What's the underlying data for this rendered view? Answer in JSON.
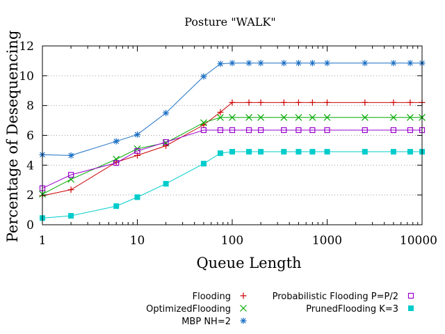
{
  "chart_data": {
    "type": "line",
    "title": "Posture \"WALK\"",
    "xlabel": "Queue Length",
    "ylabel": "Percentage of Desequencing",
    "xscale": "log",
    "xlim": [
      1,
      10000
    ],
    "ylim": [
      0,
      12
    ],
    "grid": "horizontal-dotted",
    "legend_position": "bottom",
    "xticks": [
      {
        "value": 1,
        "label": "1"
      },
      {
        "value": 10,
        "label": "10"
      },
      {
        "value": 100,
        "label": "100"
      },
      {
        "value": 1000,
        "label": "1000"
      },
      {
        "value": 10000,
        "label": "10000"
      }
    ],
    "yticks": [
      {
        "value": 0,
        "label": "0"
      },
      {
        "value": 2,
        "label": "2"
      },
      {
        "value": 4,
        "label": "4"
      },
      {
        "value": 6,
        "label": "6"
      },
      {
        "value": 8,
        "label": "8"
      },
      {
        "value": 10,
        "label": "10"
      },
      {
        "value": 12,
        "label": "12"
      }
    ],
    "x": [
      1,
      2,
      6,
      10,
      20,
      50,
      75,
      100,
      150,
      200,
      350,
      500,
      700,
      1000,
      2500,
      5000,
      7500,
      10000
    ],
    "series": [
      {
        "name": "Flooding",
        "color": "#cc0000",
        "marker": "plus",
        "values": [
          1.95,
          2.35,
          4.2,
          4.65,
          5.3,
          6.7,
          7.55,
          8.2,
          8.2,
          8.2,
          8.2,
          8.2,
          8.2,
          8.2,
          8.2,
          8.2,
          8.2,
          8.2
        ]
      },
      {
        "name": "OptimizedFlooding",
        "color": "#00aa00",
        "marker": "x",
        "values": [
          2.05,
          3.05,
          4.4,
          5.1,
          5.5,
          6.85,
          7.2,
          7.2,
          7.2,
          7.2,
          7.2,
          7.2,
          7.2,
          7.2,
          7.2,
          7.2,
          7.2,
          7.2
        ]
      },
      {
        "name": "MBP NH=2",
        "color": "#1a6fc4",
        "marker": "asterisk",
        "values": [
          4.7,
          4.65,
          5.6,
          6.05,
          7.5,
          9.95,
          10.8,
          10.85,
          10.85,
          10.85,
          10.85,
          10.85,
          10.85,
          10.85,
          10.85,
          10.85,
          10.85,
          10.85
        ]
      },
      {
        "name": "Probabilistic Flooding P=P/2",
        "color": "#9900cc",
        "marker": "open-square",
        "values": [
          2.45,
          3.35,
          4.15,
          4.95,
          5.55,
          6.35,
          6.35,
          6.35,
          6.35,
          6.35,
          6.35,
          6.35,
          6.35,
          6.35,
          6.35,
          6.35,
          6.35,
          6.35
        ]
      },
      {
        "name": "PrunedFlooding K=3",
        "color": "#00cccc",
        "marker": "filled-square",
        "values": [
          0.45,
          0.6,
          1.25,
          1.85,
          2.75,
          4.1,
          4.8,
          4.9,
          4.9,
          4.9,
          4.9,
          4.9,
          4.9,
          4.9,
          4.9,
          4.9,
          4.9,
          4.9
        ]
      }
    ]
  }
}
